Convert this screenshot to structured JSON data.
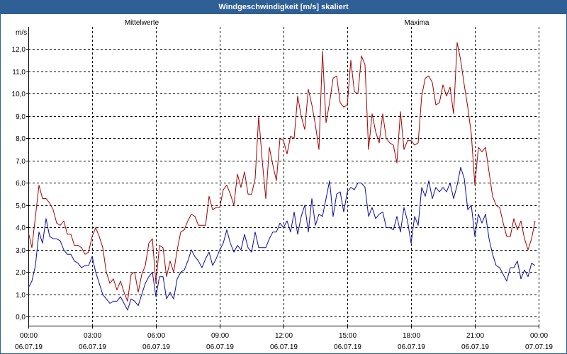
{
  "chart_data": {
    "type": "line",
    "title": "Windgeschwindigkeit [m/s] skaliert",
    "ylabel": "m/s",
    "ylim": [
      -0.4,
      13.0
    ],
    "grid": true,
    "legend": "top",
    "y_ticks": [
      {
        "value": 0,
        "label": "0,0"
      },
      {
        "value": 1,
        "label": "1,0"
      },
      {
        "value": 2,
        "label": "2,0"
      },
      {
        "value": 3,
        "label": "3,0"
      },
      {
        "value": 4,
        "label": "4,0"
      },
      {
        "value": 5,
        "label": "5,0"
      },
      {
        "value": 6,
        "label": "6,0"
      },
      {
        "value": 7,
        "label": "7,0"
      },
      {
        "value": 8,
        "label": "8,0"
      },
      {
        "value": 9,
        "label": "9,0"
      },
      {
        "value": 10,
        "label": "10,0"
      },
      {
        "value": 11,
        "label": "11,0"
      },
      {
        "value": 12,
        "label": "12,0"
      }
    ],
    "x_ticks": [
      {
        "time": "00:00",
        "date": "06.07.19"
      },
      {
        "time": "03:00",
        "date": "06.07.19"
      },
      {
        "time": "06:00",
        "date": "06.07.19"
      },
      {
        "time": "09:00",
        "date": "06.07.19"
      },
      {
        "time": "12:00",
        "date": "06.07.19"
      },
      {
        "time": "15:00",
        "date": "06.07.19"
      },
      {
        "time": "18:00",
        "date": "06.07.19"
      },
      {
        "time": "21:00",
        "date": "06.07.19"
      },
      {
        "time": "00:00",
        "date": "07.07.19"
      }
    ],
    "x": [
      "00:00",
      "00:10",
      "00:20",
      "00:30",
      "00:40",
      "00:50",
      "01:00",
      "01:10",
      "01:20",
      "01:30",
      "01:40",
      "01:50",
      "02:00",
      "02:10",
      "02:20",
      "02:30",
      "02:40",
      "02:50",
      "03:00",
      "03:10",
      "03:20",
      "03:30",
      "03:40",
      "03:50",
      "04:00",
      "04:10",
      "04:20",
      "04:30",
      "04:40",
      "04:50",
      "05:00",
      "05:10",
      "05:20",
      "05:30",
      "05:40",
      "05:50",
      "06:00",
      "06:10",
      "06:20",
      "06:30",
      "06:40",
      "06:50",
      "07:00",
      "07:10",
      "07:20",
      "07:30",
      "07:40",
      "07:50",
      "08:00",
      "08:10",
      "08:20",
      "08:30",
      "08:40",
      "08:50",
      "09:00",
      "09:10",
      "09:20",
      "09:30",
      "09:40",
      "09:50",
      "10:00",
      "10:10",
      "10:20",
      "10:30",
      "10:40",
      "10:50",
      "11:00",
      "11:10",
      "11:20",
      "11:30",
      "11:40",
      "11:50",
      "12:00",
      "12:10",
      "12:20",
      "12:30",
      "12:40",
      "12:50",
      "13:00",
      "13:10",
      "13:20",
      "13:30",
      "13:40",
      "13:50",
      "14:00",
      "14:10",
      "14:20",
      "14:30",
      "14:40",
      "14:50",
      "15:00",
      "15:10",
      "15:20",
      "15:30",
      "15:40",
      "15:50",
      "16:00",
      "16:10",
      "16:20",
      "16:30",
      "16:40",
      "16:50",
      "17:00",
      "17:10",
      "17:20",
      "17:30",
      "17:40",
      "17:50",
      "18:00",
      "18:10",
      "18:20",
      "18:30",
      "18:40",
      "18:50",
      "19:00",
      "19:10",
      "19:20",
      "19:30",
      "19:40",
      "19:50",
      "20:00",
      "20:10",
      "20:20",
      "20:30",
      "20:40",
      "20:50",
      "21:00",
      "21:10",
      "21:20",
      "21:30",
      "21:40",
      "21:50",
      "22:00",
      "22:10",
      "22:20",
      "22:30",
      "22:40",
      "22:50",
      "23:00",
      "23:10",
      "23:20",
      "23:30",
      "23:40",
      "23:50"
    ],
    "series": [
      {
        "name": "Mittelwerte",
        "color": "#0a0aa8",
        "values": [
          1.3,
          1.6,
          2.3,
          3.8,
          3.3,
          4.4,
          3.6,
          3.5,
          3.5,
          3.4,
          3.0,
          2.8,
          2.8,
          2.5,
          2.4,
          2.2,
          2.3,
          2.3,
          2.7,
          2.0,
          1.5,
          1.0,
          0.8,
          0.6,
          0.7,
          0.7,
          0.9,
          0.6,
          0.3,
          0.8,
          0.7,
          0.5,
          1.0,
          1.5,
          1.8,
          2.0,
          0.9,
          1.8,
          1.8,
          0.8,
          1.1,
          0.8,
          1.7,
          2.0,
          2.1,
          2.5,
          3.0,
          2.7,
          2.5,
          2.2,
          2.6,
          2.9,
          2.3,
          2.6,
          3.0,
          3.3,
          3.9,
          3.3,
          2.9,
          3.2,
          3.0,
          3.7,
          3.1,
          2.9,
          3.8,
          3.1,
          3.1,
          3.1,
          3.5,
          3.8,
          3.8,
          4.2,
          4.0,
          4.3,
          3.8,
          4.7,
          3.7,
          4.5,
          5.0,
          3.8,
          5.3,
          4.1,
          4.6,
          4.5,
          5.3,
          6.1,
          4.5,
          5.5,
          5.6,
          4.7,
          5.6,
          5.8,
          5.7,
          6.0,
          6.0,
          5.8,
          4.5,
          4.9,
          4.4,
          4.6,
          4.7,
          4.0,
          4.0,
          3.9,
          4.5,
          3.8,
          4.9,
          4.3,
          3.3,
          4.5,
          4.1,
          5.8,
          5.4,
          6.1,
          5.3,
          5.8,
          5.6,
          5.8,
          5.6,
          6.0,
          5.3,
          5.9,
          6.7,
          6.2,
          4.8,
          5.0,
          3.6,
          4.6,
          4.2,
          4.6,
          3.5,
          2.8,
          2.3,
          2.2,
          1.9,
          1.6,
          2.2,
          2.2,
          2.5,
          1.7,
          2.1,
          1.8,
          2.4,
          2.3
        ]
      },
      {
        "name": "Maxima",
        "color": "#a80000",
        "values": [
          3.8,
          3.1,
          4.5,
          5.9,
          5.3,
          5.3,
          5.1,
          4.8,
          4.2,
          4.1,
          4.3,
          3.7,
          3.7,
          3.2,
          3.2,
          3.1,
          2.8,
          2.9,
          3.6,
          4.0,
          3.6,
          3.1,
          2.0,
          1.5,
          1.7,
          1.2,
          1.6,
          1.1,
          0.7,
          1.9,
          2.0,
          1.1,
          1.9,
          2.3,
          3.3,
          3.5,
          1.5,
          3.2,
          3.1,
          1.8,
          2.5,
          2.0,
          3.0,
          3.8,
          3.9,
          4.3,
          4.6,
          4.5,
          4.1,
          4.1,
          4.1,
          5.4,
          4.8,
          4.9,
          4.9,
          5.7,
          5.9,
          5.5,
          5.0,
          6.4,
          5.8,
          6.5,
          5.5,
          5.5,
          6.2,
          9.0,
          7.0,
          5.3,
          7.6,
          6.8,
          6.1,
          8.0,
          7.9,
          7.3,
          8.1,
          8.0,
          9.9,
          9.0,
          8.4,
          10.2,
          9.5,
          8.6,
          7.5,
          11.9,
          8.7,
          9.6,
          10.7,
          10.8,
          9.6,
          9.4,
          9.5,
          11.5,
          10.1,
          10.0,
          11.7,
          11.3,
          7.5,
          9.1,
          8.3,
          7.8,
          9.1,
          8.0,
          7.8,
          7.7,
          6.9,
          9.2,
          7.5,
          7.9,
          7.9,
          7.7,
          7.8,
          9.9,
          10.7,
          10.8,
          10.5,
          9.5,
          9.6,
          10.4,
          9.9,
          10.3,
          9.1,
          12.3,
          11.5,
          10.4,
          9.4,
          8.2,
          5.9,
          7.6,
          7.4,
          7.6,
          6.5,
          5.4,
          5.0,
          4.9,
          4.2,
          3.6,
          3.6,
          4.4,
          3.9,
          4.3,
          3.5,
          3.0,
          3.5,
          4.3
        ]
      }
    ]
  }
}
